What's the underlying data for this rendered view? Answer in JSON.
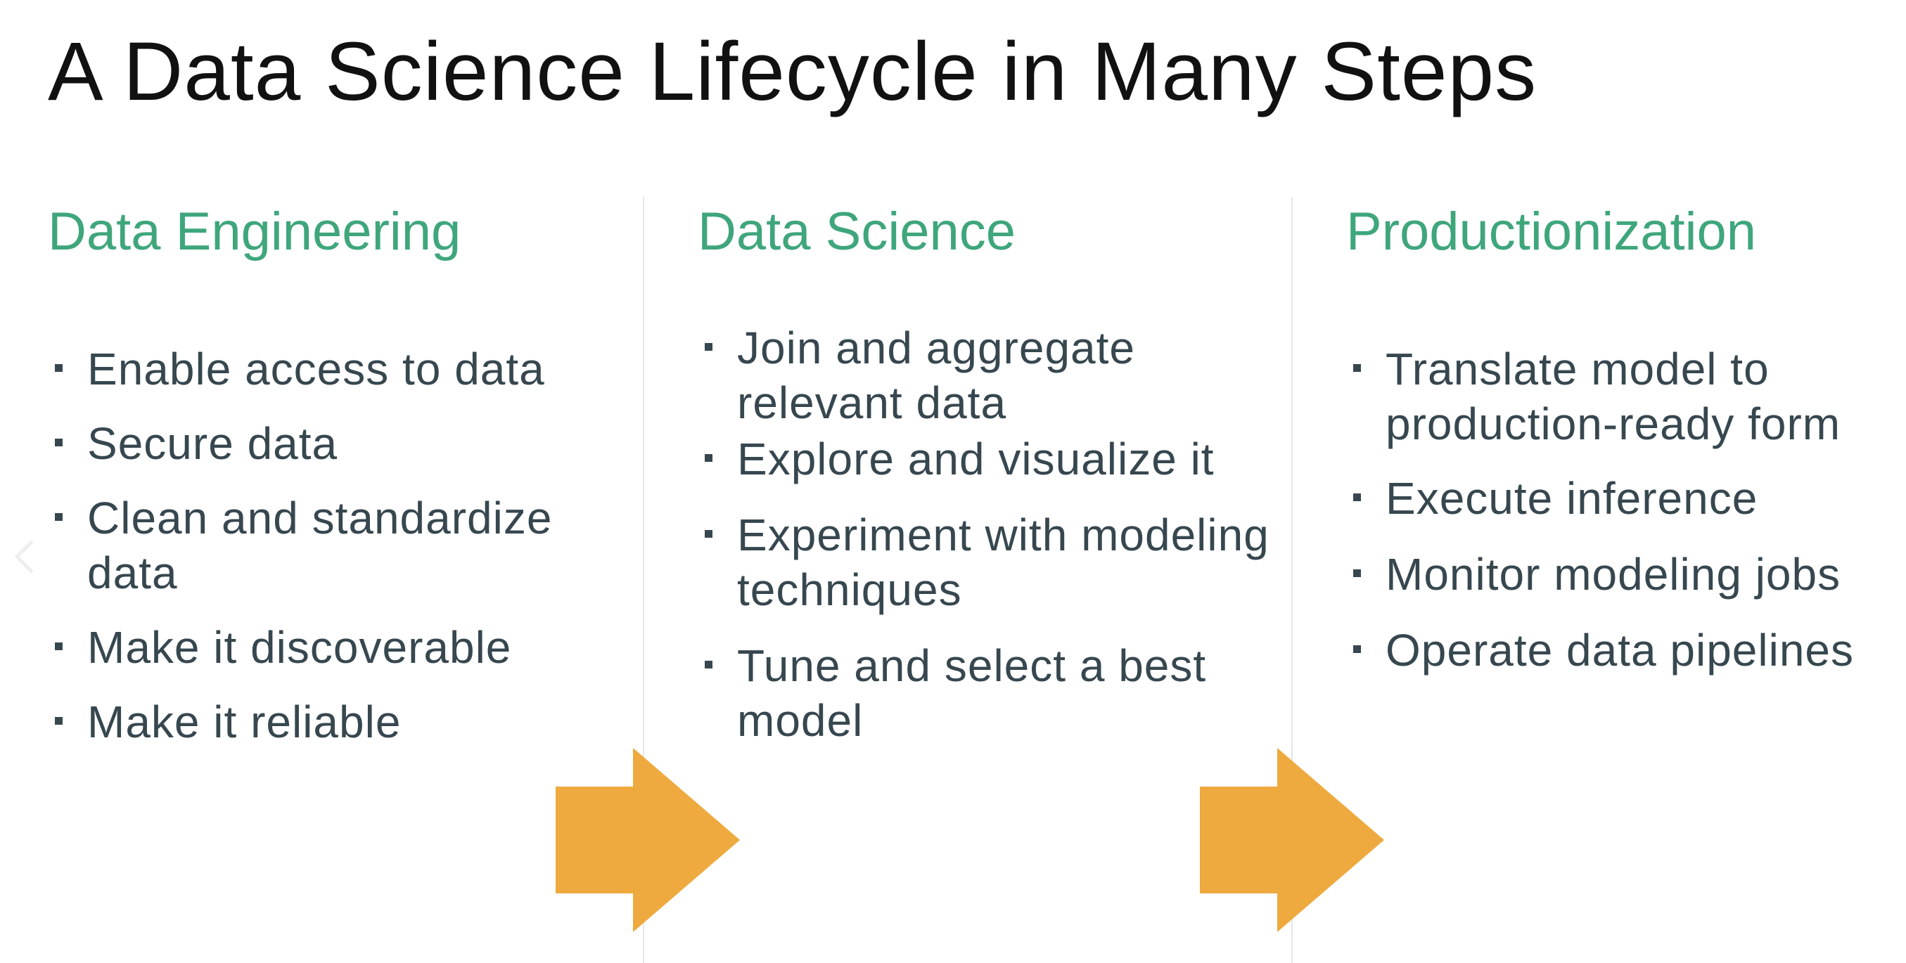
{
  "slide": {
    "title": "A Data Science Lifecycle in Many Steps"
  },
  "columns": [
    {
      "heading": "Data Engineering",
      "items": [
        "Enable access to data",
        "Secure data",
        "Clean and standardize data",
        "Make it discoverable",
        "Make it reliable"
      ]
    },
    {
      "heading": "Data Science",
      "items": [
        "Join and aggregate relevant data",
        "Explore and visualize it",
        "Experiment with modeling techniques",
        "Tune and select a best model"
      ]
    },
    {
      "heading": "Productionization",
      "items": [
        "Translate model to production-ready form",
        "Execute inference",
        "Monitor modeling jobs",
        "Operate data pipelines"
      ]
    }
  ],
  "arrows": [
    {
      "icon": "right-arrow-icon",
      "color": "#eeaa3e"
    },
    {
      "icon": "right-arrow-icon",
      "color": "#eeaa3e"
    }
  ],
  "colors": {
    "heading": "#3fa67c",
    "body_text": "#37474f",
    "title": "#111111",
    "arrow": "#eeaa3e"
  },
  "nav": {
    "prev_icon": "chevron-left-icon"
  }
}
